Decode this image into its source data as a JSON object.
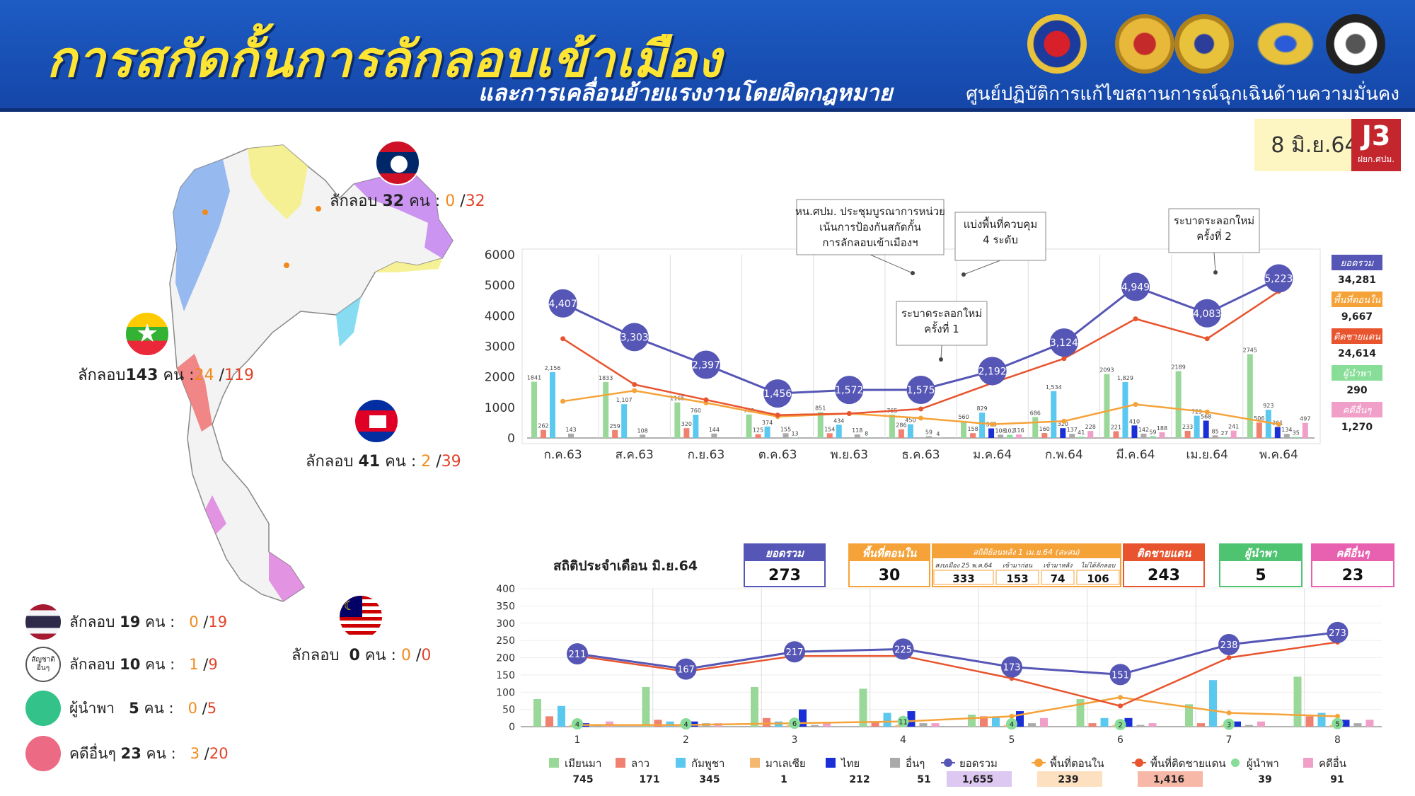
{
  "header": {
    "title": "การสกัดกั้นการลักลอบเข้าเมือง",
    "subtitle": "และการเคลื่อนย้ายแรงงานโดยผิดกฎหมาย",
    "agency": "ศูนย์ปฏิบัติการแก้ไขสถานการณ์ฉุกเฉินด้านความมั่นคง",
    "date": "8 มิ.ย.64",
    "badge_code": "J3",
    "badge_sub": "ฝยก.ศปม."
  },
  "map": {
    "countries": [
      {
        "name_icon": "laos-flag-icon",
        "label": "ลักลอบ",
        "count": "32",
        "unit": "คน",
        "sep": ":",
        "a": "0",
        "b": "32"
      },
      {
        "name_icon": "myanmar-flag-icon",
        "label": "ลักลอบ",
        "count": "143",
        "unit": "คน",
        "sep": ":",
        "a": "24",
        "b": "119"
      },
      {
        "name_icon": "cambodia-flag-icon",
        "label": "ลักลอบ",
        "count": "41",
        "unit": "คน",
        "sep": ":",
        "a": "2",
        "b": "39"
      },
      {
        "name_icon": "malaysia-flag-icon",
        "label": "ลักลอบ",
        "count": "0",
        "unit": "คน",
        "sep": ":",
        "a": "0",
        "b": "0"
      }
    ],
    "legend": [
      {
        "icon": "thai-flag-icon",
        "label": "ลักลอบ",
        "count": "19",
        "unit": "คน",
        "sep": ":",
        "a": "0",
        "b": "19"
      },
      {
        "icon": "other-nationality-icon",
        "icon_text_1": "สัญชาติ",
        "icon_text_2": "อื่นๆ",
        "label": "ลักลอบ",
        "count": "10",
        "unit": "คน",
        "sep": ":",
        "a": "1",
        "b": "9"
      },
      {
        "icon": "green-circle-icon",
        "label": "ผู้นำพา",
        "count": "5",
        "unit": "คน",
        "sep": ":",
        "a": "0",
        "b": "5"
      },
      {
        "icon": "pink-circle-icon",
        "label": "คดีอื่นๆ",
        "count": "23",
        "unit": "คน",
        "sep": ":",
        "a": "3",
        "b": "20"
      }
    ]
  },
  "colors": {
    "total": "#5556b5",
    "inland": "#f5a339",
    "border": "#e8542e",
    "myanmar": "#9ad89a",
    "lao": "#f08070",
    "cambodia": "#5bc8f0",
    "malaysia": "#f5b870",
    "thai": "#1b2fd6",
    "other": "#aaaaaa",
    "guide": "#88dd99",
    "case": "#f0a0c8"
  },
  "chart_data": [
    {
      "type": "bar+line",
      "categories": [
        "ก.ค.63",
        "ส.ค.63",
        "ก.ย.63",
        "ต.ค.63",
        "พ.ย.63",
        "ธ.ค.63",
        "ม.ค.64",
        "ก.พ.64",
        "มี.ค.64",
        "เม.ย.64",
        "พ.ค.64"
      ],
      "ylim": [
        0,
        6000
      ],
      "yticks": [
        "0",
        "1000",
        "2000",
        "3000",
        "4000",
        "5000",
        "6000"
      ],
      "total": [
        4407,
        3303,
        2397,
        1456,
        1572,
        1575,
        2192,
        3124,
        4949,
        4083,
        5223
      ],
      "total_labels": [
        "4,407",
        "3,303",
        "2,397",
        "1,456",
        "1,572",
        "1,575",
        "2,192",
        "3,124",
        "4,949",
        "4,083",
        "5,223"
      ],
      "border": [
        3250,
        1750,
        1250,
        750,
        800,
        950,
        1800,
        2600,
        3900,
        3250,
        4800
      ],
      "inland": [
        1200,
        1550,
        1150,
        700,
        800,
        650,
        450,
        550,
        1100,
        850,
        450
      ],
      "bars": [
        {
          "name": "myanmar",
          "values": [
            1841,
            1833,
            1165,
            770,
            851,
            765,
            560,
            686,
            2093,
            2189,
            2745
          ],
          "labels": [
            "1841",
            "1833",
            "1165",
            "770",
            "851",
            "765",
            "560",
            "686",
            "2093",
            "2189",
            "2745"
          ]
        },
        {
          "name": "lao",
          "values": [
            262,
            259,
            320,
            125,
            154,
            286,
            158,
            160,
            221,
            233,
            506
          ],
          "labels": [
            "262",
            "259",
            "320",
            "125",
            "154",
            "286",
            "158",
            "160",
            "221",
            "233",
            "506"
          ]
        },
        {
          "name": "cambodia",
          "values": [
            2156,
            1107,
            760,
            374,
            434,
            450,
            829,
            1534,
            1829,
            729,
            923
          ],
          "labels": [
            "2,156",
            "1,107",
            "760",
            "374",
            "434",
            "450",
            "829",
            "1,534",
            "1,829",
            "729",
            "923"
          ]
        },
        {
          "name": "thai",
          "values": [
            0,
            0,
            0,
            0,
            0,
            0,
            313,
            320,
            410,
            568,
            361
          ],
          "labels": [
            "",
            "",
            "",
            "",
            "",
            "",
            "313",
            "320",
            "410",
            "568",
            "361"
          ]
        },
        {
          "name": "other",
          "values": [
            143,
            108,
            144,
            155,
            118,
            59,
            108,
            137,
            142,
            85,
            134
          ],
          "labels": [
            "143",
            "108",
            "144",
            "155",
            "118",
            "59",
            "108",
            "137",
            "142",
            "85",
            "134"
          ]
        },
        {
          "name": "guide",
          "values": [
            0,
            0,
            0,
            13,
            8,
            4,
            102,
            41,
            59,
            27,
            35
          ],
          "labels": [
            "",
            "",
            "",
            "13",
            "8",
            "4",
            "102",
            "41",
            "59",
            "27",
            "35"
          ]
        },
        {
          "name": "case",
          "values": [
            0,
            0,
            0,
            0,
            0,
            0,
            116,
            228,
            188,
            241,
            497
          ],
          "labels": [
            "",
            "",
            "",
            "",
            "",
            "",
            "116",
            "228",
            "188",
            "241",
            "497"
          ]
        }
      ],
      "annotations": [
        {
          "text_1": "หน.ศปม. ประชุมบูรณาการหน่วย",
          "text_2": "เน้นการป้องกันสกัดกั้น",
          "text_3": "การลักลอบเข้าเมืองฯ"
        },
        {
          "text_1": "แบ่งพื้นที่ควบคุม",
          "text_2": "4 ระดับ"
        },
        {
          "text_1": "ระบาดระลอกใหม่",
          "text_2": "ครั้งที่ 1"
        },
        {
          "text_1": "ระบาดระลอกใหม่",
          "text_2": "ครั้งที่ 2"
        }
      ],
      "legend": [
        {
          "label": "ยอดรวม",
          "value": "34,281"
        },
        {
          "label": "พื้นที่ตอนใน",
          "value": "9,667"
        },
        {
          "label": "ติดชายแดน",
          "value": "24,614"
        },
        {
          "label": "ผู้นำพา",
          "value": "290"
        },
        {
          "label": "คดีอื่นๆ",
          "value": "1,270"
        }
      ]
    },
    {
      "type": "bar+line",
      "title": "สถิติประจำเดือน มิ.ย.64",
      "categories": [
        "1",
        "2",
        "3",
        "4",
        "5",
        "6",
        "7",
        "8"
      ],
      "ylim": [
        0,
        400
      ],
      "yticks": [
        "0",
        "50",
        "100",
        "150",
        "200",
        "250",
        "300",
        "350",
        "400"
      ],
      "total": [
        211,
        167,
        217,
        225,
        173,
        151,
        238,
        273
      ],
      "border": [
        205,
        160,
        205,
        205,
        140,
        60,
        200,
        245
      ],
      "inland": [
        5,
        5,
        10,
        15,
        30,
        85,
        40,
        30
      ],
      "guide": [
        4,
        4,
        6,
        11,
        4,
        2,
        3,
        5
      ],
      "bars": [
        {
          "name": "myanmar",
          "values": [
            80,
            115,
            115,
            110,
            35,
            80,
            65,
            145
          ]
        },
        {
          "name": "lao",
          "values": [
            30,
            20,
            25,
            15,
            30,
            10,
            10,
            30
          ]
        },
        {
          "name": "cambodia",
          "values": [
            60,
            15,
            15,
            40,
            30,
            25,
            135,
            40
          ]
        },
        {
          "name": "malaysia",
          "values": [
            5,
            5,
            5,
            5,
            5,
            5,
            5,
            5
          ]
        },
        {
          "name": "thai",
          "values": [
            10,
            15,
            50,
            45,
            45,
            25,
            15,
            20
          ]
        },
        {
          "name": "other",
          "values": [
            5,
            10,
            5,
            10,
            10,
            5,
            5,
            10
          ]
        },
        {
          "name": "case",
          "values": [
            15,
            10,
            10,
            10,
            25,
            10,
            15,
            20
          ]
        }
      ],
      "stats": {
        "total": {
          "label": "ยอดรวม",
          "value": "273"
        },
        "inland": {
          "label": "พื้นที่ตอนใน",
          "value": "30"
        },
        "prev": {
          "label": "สถิติย้อนหลัง 1 เม.ย.64 (สะสม)",
          "sub_1": "สงบเมือง 25 พ.ค.64",
          "sub_2": "เข้ามาก่อน",
          "sub_3": "เข้ามาหลัง",
          "sub_4": "ไม่ได้ลักลอบ",
          "v1": "333",
          "v2": "153",
          "v3": "74",
          "v4": "106"
        },
        "border": {
          "label": "ติดชายแดน",
          "value": "243"
        },
        "guide": {
          "label": "ผู้นำพา",
          "value": "5"
        },
        "case": {
          "label": "คดีอื่นๆ",
          "value": "23"
        }
      },
      "legend": [
        {
          "label": "เมียนมา",
          "value": "745"
        },
        {
          "label": "ลาว",
          "value": "171"
        },
        {
          "label": "กัมพูชา",
          "value": "345"
        },
        {
          "label": "มาเลเซีย",
          "value": "1"
        },
        {
          "label": "ไทย",
          "value": "212"
        },
        {
          "label": "อื่นๆ",
          "value": "51"
        },
        {
          "label": "ยอดรวม",
          "value": "1,655"
        },
        {
          "label": "พื้นที่ตอนใน",
          "value": "239"
        },
        {
          "label": "พื้นที่ติดชายแดน",
          "value": "1,416"
        },
        {
          "label": "ผู้นำพา",
          "value": "39"
        },
        {
          "label": "คดีอื่น",
          "value": "91"
        }
      ]
    }
  ]
}
